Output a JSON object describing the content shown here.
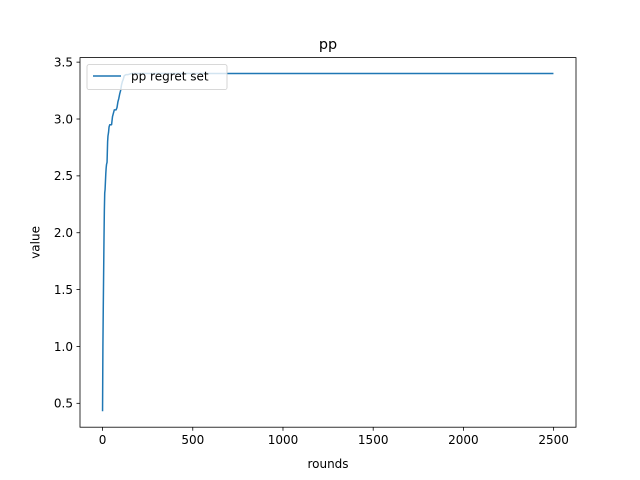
{
  "chart_data": {
    "type": "line",
    "title": "pp",
    "xlabel": "rounds",
    "ylabel": "value",
    "xlim": [
      -125,
      2624
    ],
    "ylim": [
      0.29,
      3.54
    ],
    "xticks": [
      0,
      500,
      1000,
      1500,
      2000,
      2500
    ],
    "yticks": [
      0.5,
      1.0,
      1.5,
      2.0,
      2.5,
      3.0,
      3.5
    ],
    "xtick_labels": [
      "0",
      "500",
      "1000",
      "1500",
      "2000",
      "2500"
    ],
    "ytick_labels": [
      "0.5",
      "1.0",
      "1.5",
      "2.0",
      "2.5",
      "3.0",
      "3.5"
    ],
    "grid": false,
    "legend_position": "upper-left",
    "series": [
      {
        "name": "pp regret set",
        "color": "#1f77b4",
        "x": [
          0,
          2,
          4,
          6,
          8,
          10,
          12,
          14,
          16,
          18,
          20,
          22,
          25,
          28,
          30,
          33,
          36,
          40,
          45,
          50,
          55,
          60,
          65,
          70,
          75,
          80,
          85,
          90,
          95,
          100,
          105,
          110,
          115,
          120,
          130,
          140,
          160,
          200,
          2499
        ],
        "y": [
          0.43,
          1.0,
          1.35,
          1.65,
          1.95,
          2.2,
          2.35,
          2.38,
          2.45,
          2.52,
          2.57,
          2.6,
          2.62,
          2.8,
          2.85,
          2.88,
          2.93,
          2.95,
          2.95,
          2.95,
          3.02,
          3.05,
          3.08,
          3.08,
          3.08,
          3.1,
          3.15,
          3.18,
          3.22,
          3.25,
          3.3,
          3.33,
          3.35,
          3.38,
          3.39,
          3.39,
          3.4,
          3.4,
          3.4
        ]
      }
    ]
  }
}
